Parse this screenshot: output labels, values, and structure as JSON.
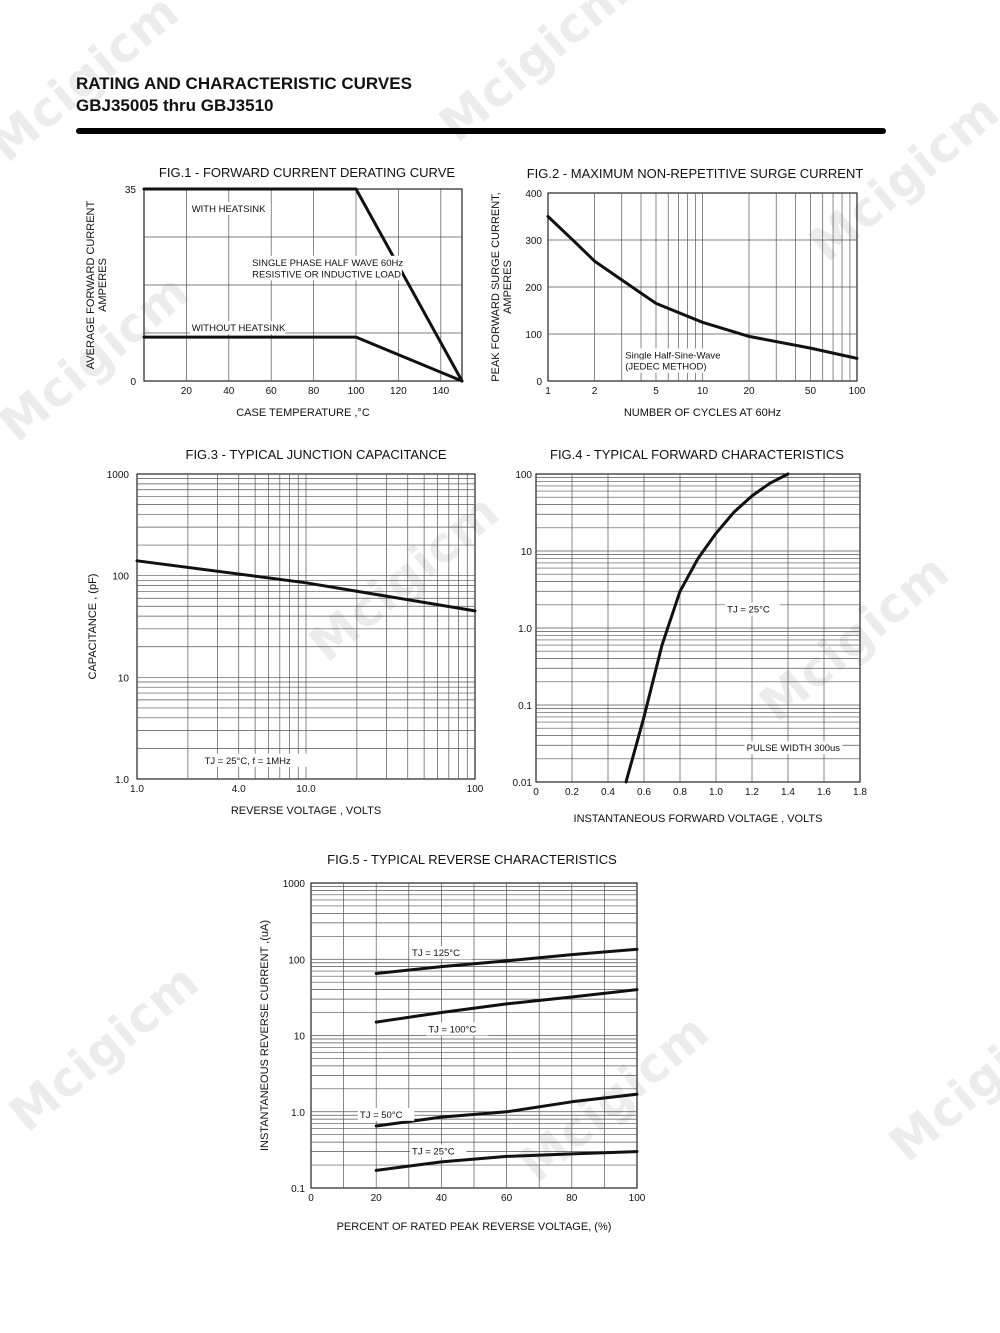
{
  "header": {
    "title": "RATING AND CHARACTERISTIC CURVES",
    "subtitle": "GBJ35005 thru GBJ3510"
  },
  "watermark": {
    "text": "Mcigicm"
  },
  "chart_data": [
    {
      "id": "fig1",
      "type": "line",
      "title": "FIG.1 - FORWARD CURRENT DERATING CURVE",
      "xlabel": "CASE TEMPERATURE ,°C",
      "ylabel": [
        "AVERAGE FORWARD CURRENT",
        "AMPERES"
      ],
      "x_scale": "linear",
      "y_scale": "linear",
      "xlim": [
        0,
        150
      ],
      "ylim": [
        0,
        35
      ],
      "x_ticks": [
        20,
        40,
        60,
        80,
        100,
        120,
        140
      ],
      "y_ticks": [
        0,
        35
      ],
      "grid": true,
      "series": [
        {
          "name": "WITH HEATSINK",
          "x": [
            0,
            100,
            150
          ],
          "y": [
            35,
            35,
            0
          ]
        },
        {
          "name": "WITHOUT HEATSINK",
          "x": [
            0,
            100,
            150
          ],
          "y": [
            8,
            8,
            0
          ]
        }
      ],
      "annotations": [
        "SINGLE PHASE HALF WAVE 60Hz",
        "RESISTIVE OR INDUCTIVE LOAD"
      ]
    },
    {
      "id": "fig2",
      "type": "line",
      "title": "FIG.2 - MAXIMUM NON-REPETITIVE SURGE CURRENT",
      "xlabel": "NUMBER OF CYCLES AT 60Hz",
      "ylabel": [
        "PEAK FORWARD SURGE CURRENT,",
        "AMPERES"
      ],
      "x_scale": "log",
      "y_scale": "linear",
      "xlim": [
        1,
        100
      ],
      "ylim": [
        0,
        400
      ],
      "x_ticks": [
        1,
        2,
        5,
        10,
        20,
        50,
        100
      ],
      "y_ticks": [
        0,
        100,
        200,
        300,
        400
      ],
      "grid": true,
      "series": [
        {
          "name": "",
          "x": [
            1,
            1.5,
            2,
            3,
            5,
            10,
            20,
            50,
            100
          ],
          "y": [
            350,
            295,
            255,
            215,
            165,
            125,
            95,
            70,
            48
          ]
        }
      ],
      "annotations": [
        "Single Half-Sine-Wave",
        "(JEDEC METHOD)"
      ]
    },
    {
      "id": "fig3",
      "type": "line",
      "title": "FIG.3 - TYPICAL JUNCTION CAPACITANCE",
      "xlabel": "REVERSE VOLTAGE , VOLTS",
      "ylabel": [
        "CAPACITANCE , (pF)"
      ],
      "x_scale": "log",
      "y_scale": "log",
      "xlim": [
        1,
        100
      ],
      "ylim": [
        1,
        1000
      ],
      "x_ticks": [
        1,
        4,
        10,
        100
      ],
      "x_tick_labels": [
        "1.0",
        "4.0",
        "10.0",
        "100"
      ],
      "y_ticks": [
        1,
        10,
        100,
        1000
      ],
      "y_tick_labels": [
        "1.0",
        "10",
        "100",
        "1000"
      ],
      "grid": true,
      "series": [
        {
          "name": "",
          "x": [
            1,
            10,
            100
          ],
          "y": [
            140,
            85,
            45
          ]
        }
      ],
      "annotations": [
        "TJ = 25°C,  f = 1MHz"
      ]
    },
    {
      "id": "fig4",
      "type": "line",
      "title": "FIG.4 - TYPICAL FORWARD CHARACTERISTICS",
      "xlabel": "INSTANTANEOUS FORWARD VOLTAGE , VOLTS",
      "ylabel": [],
      "x_scale": "linear",
      "y_scale": "log",
      "xlim": [
        0,
        1.8
      ],
      "ylim": [
        0.01,
        100
      ],
      "x_ticks": [
        0,
        0.2,
        0.4,
        0.6,
        0.8,
        1.0,
        1.2,
        1.4,
        1.6,
        1.8
      ],
      "x_tick_labels": [
        "0",
        "0.2",
        "0.4",
        "0.6",
        "0.8",
        "1.0",
        "1.2",
        "1.4",
        "1.6",
        "1.8"
      ],
      "y_ticks": [
        0.01,
        0.1,
        1,
        10,
        100
      ],
      "y_tick_labels": [
        "0.01",
        "0.1",
        "1.0",
        "10",
        "100"
      ],
      "grid": true,
      "series": [
        {
          "name": "",
          "x": [
            0.5,
            0.6,
            0.7,
            0.8,
            0.9,
            1.0,
            1.1,
            1.2,
            1.3,
            1.4
          ],
          "y": [
            0.01,
            0.07,
            0.6,
            3,
            8,
            17,
            32,
            52,
            76,
            100
          ]
        }
      ],
      "annotations": [
        "TJ = 25°C",
        "PULSE WIDTH 300us"
      ]
    },
    {
      "id": "fig5",
      "type": "line",
      "title": "FIG.5 - TYPICAL REVERSE CHARACTERISTICS",
      "xlabel": "PERCENT OF RATED PEAK REVERSE VOLTAGE, (%)",
      "ylabel": [
        "INSTANTANEOUS REVERSE CURRENT ,(uA)"
      ],
      "x_scale": "linear",
      "y_scale": "log",
      "xlim": [
        0,
        100
      ],
      "ylim": [
        0.1,
        1000
      ],
      "x_ticks": [
        0,
        20,
        40,
        60,
        80,
        100
      ],
      "y_ticks": [
        0.1,
        1,
        10,
        100,
        1000
      ],
      "y_tick_labels": [
        "0.1",
        "1.0",
        "10",
        "100",
        "1000"
      ],
      "grid": true,
      "series": [
        {
          "name": "TJ = 125°C",
          "x": [
            20,
            40,
            60,
            80,
            100
          ],
          "y": [
            65,
            80,
            95,
            115,
            135
          ]
        },
        {
          "name": "TJ = 100°C",
          "x": [
            20,
            40,
            60,
            80,
            100
          ],
          "y": [
            15,
            20,
            26,
            32,
            40
          ]
        },
        {
          "name": "TJ = 50°C",
          "x": [
            20,
            40,
            60,
            80,
            100
          ],
          "y": [
            0.65,
            0.85,
            1.0,
            1.35,
            1.7
          ]
        },
        {
          "name": "TJ = 25°C",
          "x": [
            20,
            40,
            60,
            80,
            100
          ],
          "y": [
            0.17,
            0.22,
            0.26,
            0.28,
            0.3
          ]
        }
      ]
    }
  ]
}
